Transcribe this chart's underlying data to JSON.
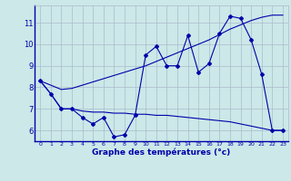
{
  "xlabel": "Graphe des températures (°c)",
  "background_color": "#cce8e8",
  "line_color": "#0000aa",
  "grid_color": "#aabbcc",
  "xlim": [
    -0.5,
    23.5
  ],
  "ylim": [
    5.5,
    11.8
  ],
  "yticks": [
    6,
    7,
    8,
    9,
    10,
    11
  ],
  "xticks": [
    0,
    1,
    2,
    3,
    4,
    5,
    6,
    7,
    8,
    9,
    10,
    11,
    12,
    13,
    14,
    15,
    16,
    17,
    18,
    19,
    20,
    21,
    22,
    23
  ],
  "actual": [
    8.3,
    7.7,
    7.0,
    7.0,
    6.6,
    6.3,
    6.6,
    5.7,
    5.8,
    6.7,
    9.5,
    9.9,
    9.0,
    9.0,
    10.4,
    8.7,
    9.1,
    10.5,
    11.3,
    11.2,
    10.2,
    8.6,
    6.0,
    6.0
  ],
  "max_line": [
    8.3,
    8.1,
    7.9,
    7.95,
    8.1,
    8.25,
    8.4,
    8.55,
    8.7,
    8.85,
    9.0,
    9.2,
    9.4,
    9.6,
    9.8,
    10.0,
    10.2,
    10.45,
    10.7,
    10.9,
    11.1,
    11.25,
    11.35,
    11.35
  ],
  "min_line": [
    8.3,
    7.7,
    7.0,
    7.0,
    6.9,
    6.85,
    6.85,
    6.8,
    6.8,
    6.75,
    6.75,
    6.7,
    6.7,
    6.65,
    6.6,
    6.55,
    6.5,
    6.45,
    6.4,
    6.3,
    6.2,
    6.1,
    6.0,
    6.0
  ]
}
